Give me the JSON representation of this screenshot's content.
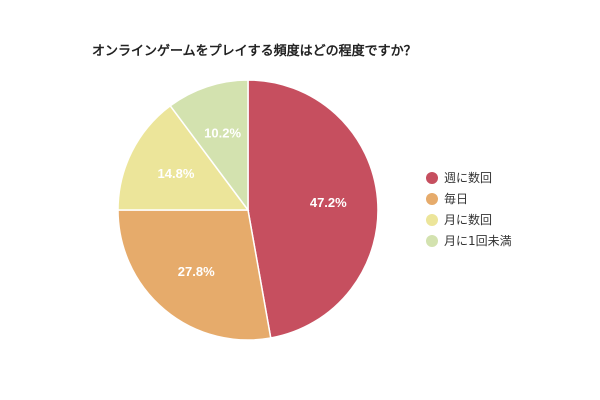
{
  "chart_data": {
    "type": "pie",
    "title": "オンラインゲームをプレイする頻度はどの程度ですか？",
    "categories": [
      "週に数回",
      "毎日",
      "月に数回",
      "月に1回未満"
    ],
    "values": [
      47.2,
      27.8,
      14.8,
      10.2
    ],
    "labels": [
      "47.2%",
      "27.8%",
      "14.8%",
      "10.2%"
    ],
    "colors": [
      "#c64f5f",
      "#e6ab6b",
      "#ece59a",
      "#d3e2af"
    ],
    "legend_position": "right",
    "start_angle": "12 o'clock",
    "direction": "clockwise"
  }
}
